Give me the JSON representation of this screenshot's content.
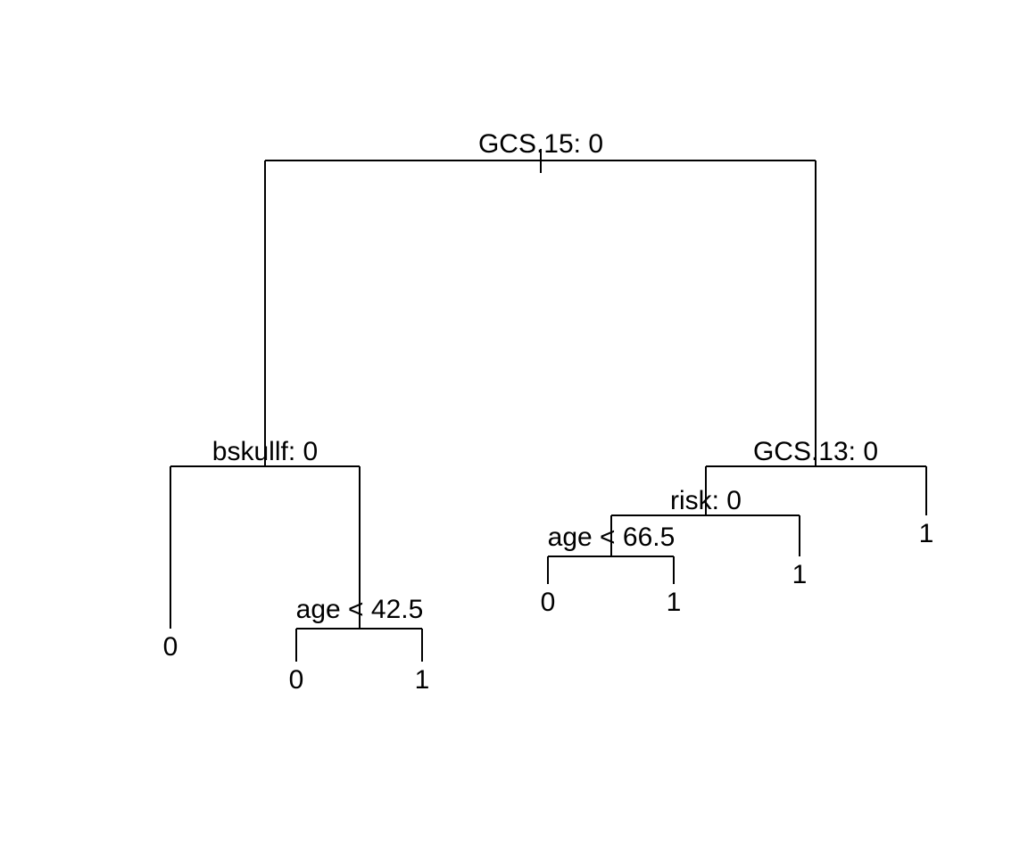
{
  "tree": {
    "root": {
      "split_label": "GCS.15: 0",
      "left": {
        "split_label": "bskullf: 0",
        "left": {
          "leaf_label": "0"
        },
        "right": {
          "split_label": "age < 42.5",
          "left": {
            "leaf_label": "0"
          },
          "right": {
            "leaf_label": "1"
          }
        }
      },
      "right": {
        "split_label": "GCS.13: 0",
        "left": {
          "split_label": "risk: 0",
          "left": {
            "split_label": "age < 66.5",
            "left": {
              "leaf_label": "0"
            },
            "right": {
              "leaf_label": "1"
            }
          },
          "right": {
            "leaf_label": "1"
          }
        },
        "right": {
          "leaf_label": "1"
        }
      }
    }
  }
}
